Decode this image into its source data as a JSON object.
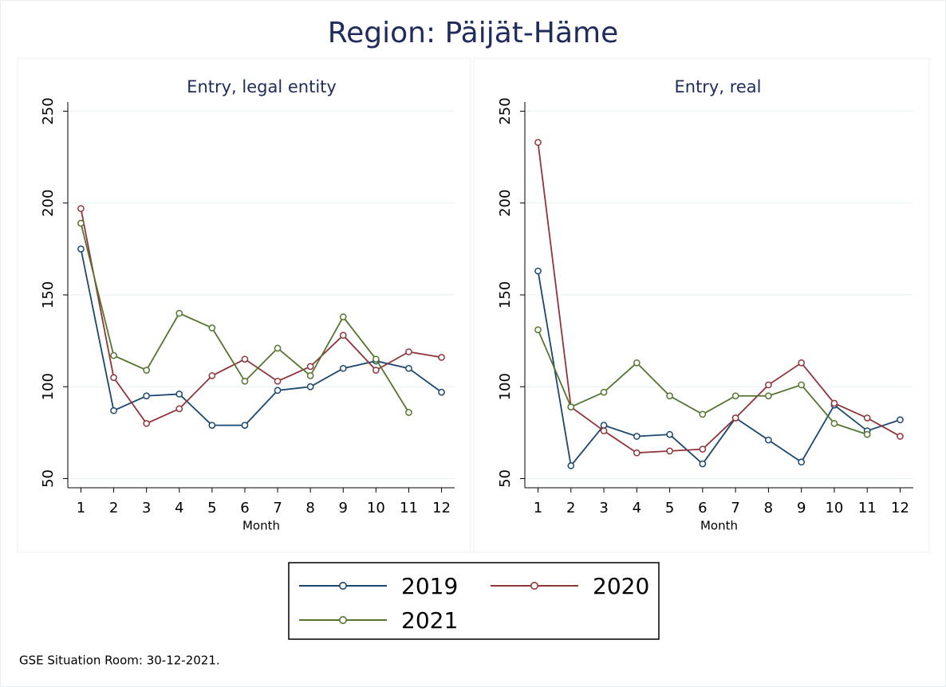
{
  "title": "Region: Päijät-Häme",
  "note": "GSE Situation Room: 30-12-2021.",
  "chart_data": [
    {
      "type": "line",
      "title": "Entry, legal entity",
      "xlabel": "Month",
      "x": [
        1,
        2,
        3,
        4,
        5,
        6,
        7,
        8,
        9,
        10,
        11,
        12
      ],
      "xlim": [
        0.6,
        12.4
      ],
      "xticks": [
        1,
        2,
        3,
        4,
        5,
        6,
        7,
        8,
        9,
        10,
        11,
        12
      ],
      "ylim": [
        45,
        255
      ],
      "yticks": [
        50,
        100,
        150,
        200,
        250
      ],
      "grid": true,
      "series": [
        {
          "name": "2019",
          "color": "#1a476f",
          "values": [
            175,
            87,
            95,
            96,
            79,
            79,
            98,
            100,
            110,
            114,
            110,
            97
          ]
        },
        {
          "name": "2020",
          "color": "#90353b",
          "values": [
            197,
            105,
            80,
            88,
            106,
            115,
            103,
            111,
            128,
            109,
            119,
            116
          ]
        },
        {
          "name": "2021",
          "color": "#55752f",
          "values": [
            189,
            117,
            109,
            140,
            132,
            103,
            121,
            106,
            138,
            115,
            86,
            null
          ]
        }
      ]
    },
    {
      "type": "line",
      "title": "Entry, real",
      "xlabel": "Month",
      "x": [
        1,
        2,
        3,
        4,
        5,
        6,
        7,
        8,
        9,
        10,
        11,
        12
      ],
      "xlim": [
        0.6,
        12.4
      ],
      "xticks": [
        1,
        2,
        3,
        4,
        5,
        6,
        7,
        8,
        9,
        10,
        11,
        12
      ],
      "ylim": [
        45,
        255
      ],
      "yticks": [
        50,
        100,
        150,
        200,
        250
      ],
      "grid": true,
      "series": [
        {
          "name": "2019",
          "color": "#1a476f",
          "values": [
            163,
            57,
            79,
            73,
            74,
            58,
            83,
            71,
            59,
            90,
            76,
            82
          ]
        },
        {
          "name": "2020",
          "color": "#90353b",
          "values": [
            233,
            89,
            76,
            64,
            65,
            66,
            83,
            101,
            113,
            91,
            83,
            73
          ]
        },
        {
          "name": "2021",
          "color": "#55752f",
          "values": [
            131,
            89,
            97,
            113,
            95,
            85,
            95,
            95,
            101,
            80,
            74,
            null
          ]
        }
      ]
    }
  ]
}
